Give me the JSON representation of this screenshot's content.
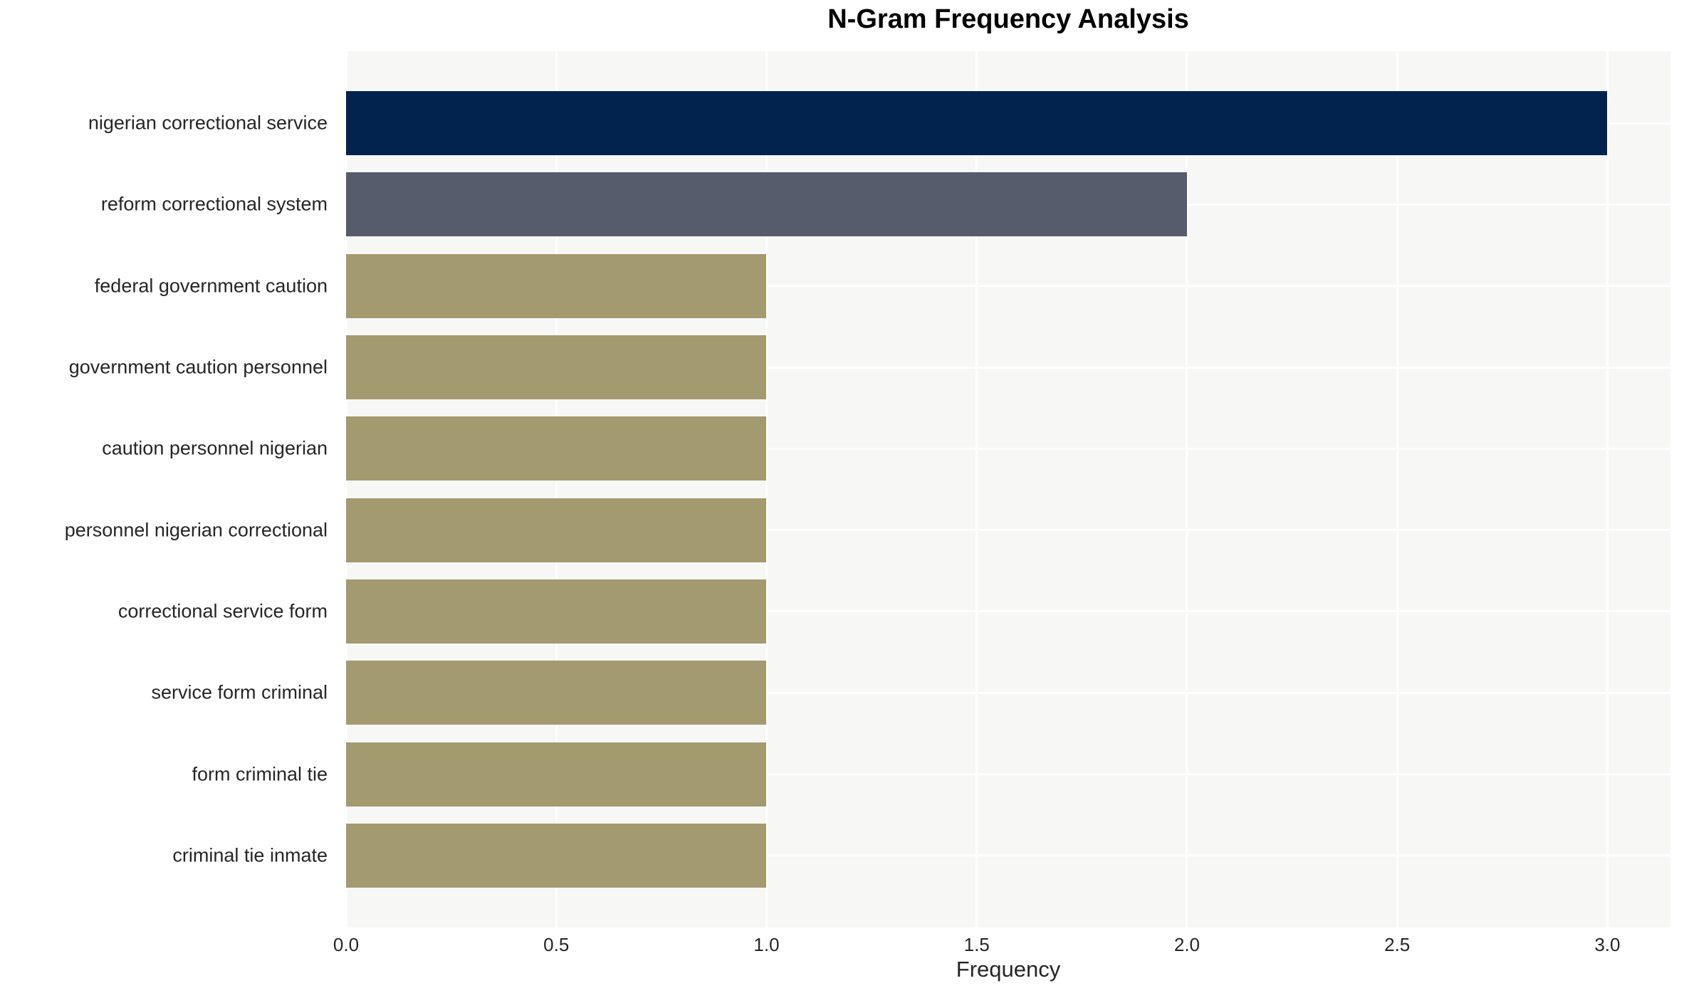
{
  "chart_data": {
    "type": "bar",
    "orientation": "horizontal",
    "title": "N-Gram Frequency Analysis",
    "xlabel": "Frequency",
    "ylabel": "",
    "categories": [
      "nigerian correctional service",
      "reform correctional system",
      "federal government caution",
      "government caution personnel",
      "caution personnel nigerian",
      "personnel nigerian correctional",
      "correctional service form",
      "service form criminal",
      "form criminal tie",
      "criminal tie inmate"
    ],
    "values": [
      3,
      2,
      1,
      1,
      1,
      1,
      1,
      1,
      1,
      1
    ],
    "xlim": [
      0,
      3.15
    ],
    "xticks": [
      0.0,
      0.5,
      1.0,
      1.5,
      2.0,
      2.5,
      3.0
    ],
    "xtick_labels": [
      "0.0",
      "0.5",
      "1.0",
      "1.5",
      "2.0",
      "2.5",
      "3.0"
    ],
    "grid": true,
    "legend": false,
    "bar_colors": [
      "#02234e",
      "#565c6b",
      "#a49a6f",
      "#a49a6f",
      "#a49a6f",
      "#a49a6f",
      "#a49a6f",
      "#a49a6f",
      "#a49a6f",
      "#a49a6f"
    ],
    "colors": {
      "plot_background": "#f7f7f6",
      "figure_background": "#ffffff",
      "gridline": "#ffffff",
      "text": "#262626",
      "title_text": "#000000"
    }
  }
}
